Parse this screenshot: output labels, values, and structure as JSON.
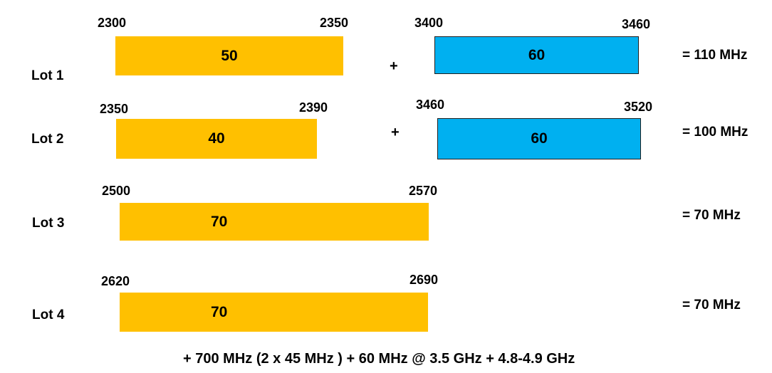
{
  "colors": {
    "orange": "#FFC000",
    "blue": "#00B0F0"
  },
  "lots": [
    {
      "label": "Lot 1",
      "bands": [
        {
          "start": "2300",
          "end": "2350",
          "width": "50",
          "color": "orange"
        },
        {
          "start": "3400",
          "end": "3460",
          "width": "60",
          "color": "blue"
        }
      ],
      "plus": "+",
      "total": "= 110 MHz"
    },
    {
      "label": "Lot 2",
      "bands": [
        {
          "start": "2350",
          "end": "2390",
          "width": "40",
          "color": "orange"
        },
        {
          "start": "3460",
          "end": "3520",
          "width": "60",
          "color": "blue"
        }
      ],
      "plus": "+",
      "total": "= 100 MHz"
    },
    {
      "label": "Lot 3",
      "bands": [
        {
          "start": "2500",
          "end": "2570",
          "width": "70",
          "color": "orange"
        }
      ],
      "total": "= 70 MHz"
    },
    {
      "label": "Lot 4",
      "bands": [
        {
          "start": "2620",
          "end": "2690",
          "width": "70",
          "color": "orange"
        }
      ],
      "total": "= 70 MHz"
    }
  ],
  "footer": "+ 700 MHz (2 x 45 MHz ) + 60 MHz @ 3.5 GHz + 4.8-4.9 GHz"
}
